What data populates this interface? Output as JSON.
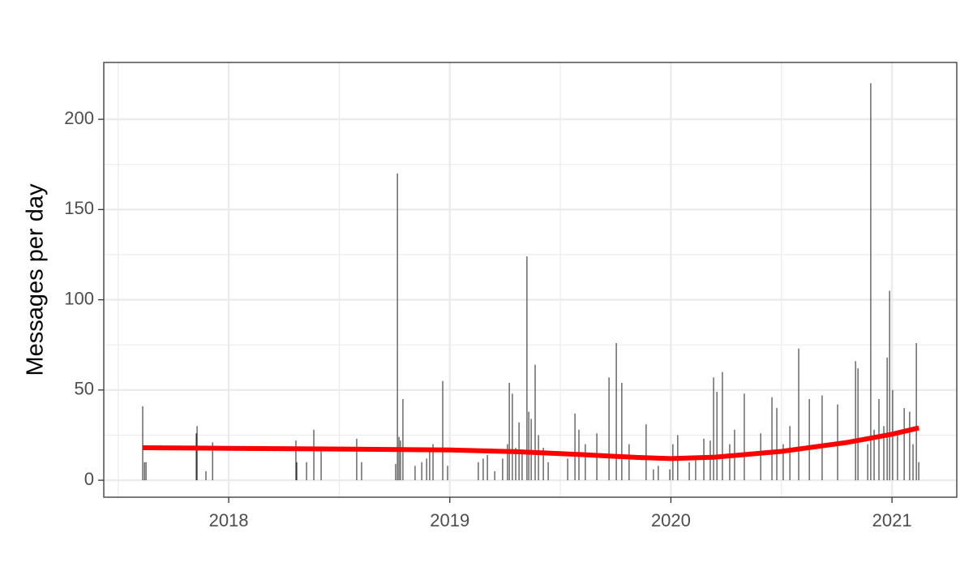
{
  "chart_data": {
    "type": "bar",
    "y_label": "Messages per day",
    "xlim": [
      2017.435,
      2021.293
    ],
    "ylim": [
      -9.4,
      231.5
    ],
    "xticks": [
      2018,
      2019,
      2020,
      2021
    ],
    "yticks": [
      0,
      50,
      100,
      150,
      200
    ],
    "x_minor_grid": [
      2017.5,
      2018.5,
      2019.5,
      2020.5
    ],
    "y_minor_grid": [
      25,
      75,
      125,
      175
    ],
    "grid": true,
    "series": [
      {
        "type": "bar",
        "color": "#333333",
        "x": [
          2017.611,
          2017.619,
          2017.626,
          2017.853,
          2017.857,
          2017.897,
          2017.927,
          2018.304,
          2018.308,
          2018.352,
          2018.385,
          2018.418,
          2018.579,
          2018.601,
          2018.755,
          2018.763,
          2018.77,
          2018.777,
          2018.788,
          2018.843,
          2018.873,
          2018.895,
          2018.909,
          2018.924,
          2018.968,
          2018.99,
          2019.129,
          2019.151,
          2019.17,
          2019.203,
          2019.239,
          2019.261,
          2019.269,
          2019.283,
          2019.298,
          2019.313,
          2019.327,
          2019.349,
          2019.357,
          2019.368,
          2019.386,
          2019.401,
          2019.423,
          2019.445,
          2019.533,
          2019.566,
          2019.584,
          2019.613,
          2019.665,
          2019.72,
          2019.753,
          2019.778,
          2019.811,
          2019.888,
          2019.921,
          2019.943,
          2019.995,
          2020.009,
          2020.031,
          2020.083,
          2020.112,
          2020.149,
          2020.178,
          2020.193,
          2020.208,
          2020.233,
          2020.266,
          2020.288,
          2020.332,
          2020.406,
          2020.457,
          2020.479,
          2020.508,
          2020.538,
          2020.578,
          2020.626,
          2020.684,
          2020.754,
          2020.835,
          2020.846,
          2020.89,
          2020.904,
          2020.919,
          2020.941,
          2020.963,
          2020.978,
          2020.989,
          2021.003,
          2021.025,
          2021.055,
          2021.08,
          2021.095,
          2021.11,
          2021.121
        ],
        "values": [
          41,
          10,
          10,
          26,
          30,
          5,
          21,
          22,
          10,
          10,
          28,
          17,
          23,
          10,
          9,
          170,
          24,
          22,
          45,
          8,
          10,
          12,
          18,
          20,
          55,
          8,
          10,
          12,
          14,
          5,
          12,
          20,
          54,
          48,
          18,
          32,
          15,
          124,
          38,
          34,
          64,
          25,
          18,
          10,
          12,
          37,
          28,
          20,
          26,
          57,
          76,
          54,
          20,
          31,
          6,
          8,
          6,
          20,
          25,
          10,
          12,
          23,
          22,
          57,
          49,
          60,
          20,
          28,
          48,
          26,
          46,
          40,
          20,
          30,
          73,
          45,
          47,
          42,
          66,
          62,
          20,
          220,
          28,
          45,
          30,
          68,
          105,
          50,
          25,
          40,
          38,
          20,
          76,
          10
        ]
      },
      {
        "type": "line",
        "color": "#ff0000",
        "x": [
          2017.611,
          2018.0,
          2018.5,
          2019.0,
          2019.3,
          2019.6,
          2019.85,
          2020.0,
          2020.2,
          2020.5,
          2020.8,
          2021.0,
          2021.121
        ],
        "values": [
          18,
          17.7,
          17.3,
          16.8,
          15.8,
          14.2,
          12.6,
          12,
          12.8,
          16,
          21,
          25.5,
          29
        ]
      }
    ]
  }
}
